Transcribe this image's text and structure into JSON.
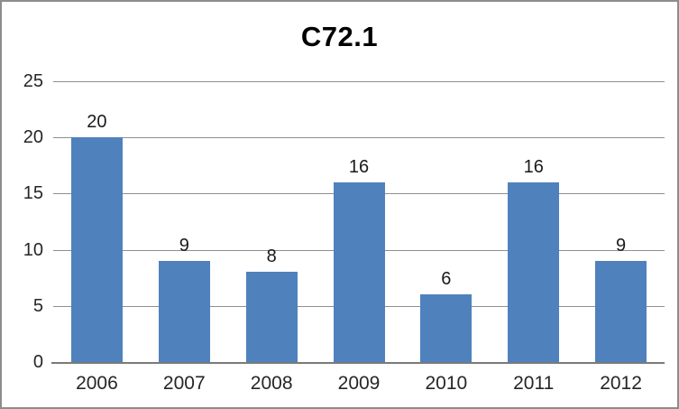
{
  "window": {
    "background": "#FFFFFF",
    "border_color": "#8C8C8C"
  },
  "chart_data": {
    "type": "bar",
    "title": "C72.1",
    "categories": [
      "2006",
      "2007",
      "2008",
      "2009",
      "2010",
      "2011",
      "2012"
    ],
    "values": [
      20,
      9,
      8,
      16,
      6,
      16,
      9
    ],
    "xlabel": "",
    "ylabel": "",
    "ylim": [
      0,
      25
    ],
    "yticks": [
      0,
      5,
      10,
      15,
      20,
      25
    ],
    "grid": true,
    "legend": false,
    "data_labels_visible": true,
    "colors": {
      "bar": "#4F81BD",
      "gridline": "#8F8F8F",
      "axis": "#7A7A7A",
      "tick_label": "#262626",
      "value_label": "#1A1A1A",
      "title": "#000000"
    }
  }
}
